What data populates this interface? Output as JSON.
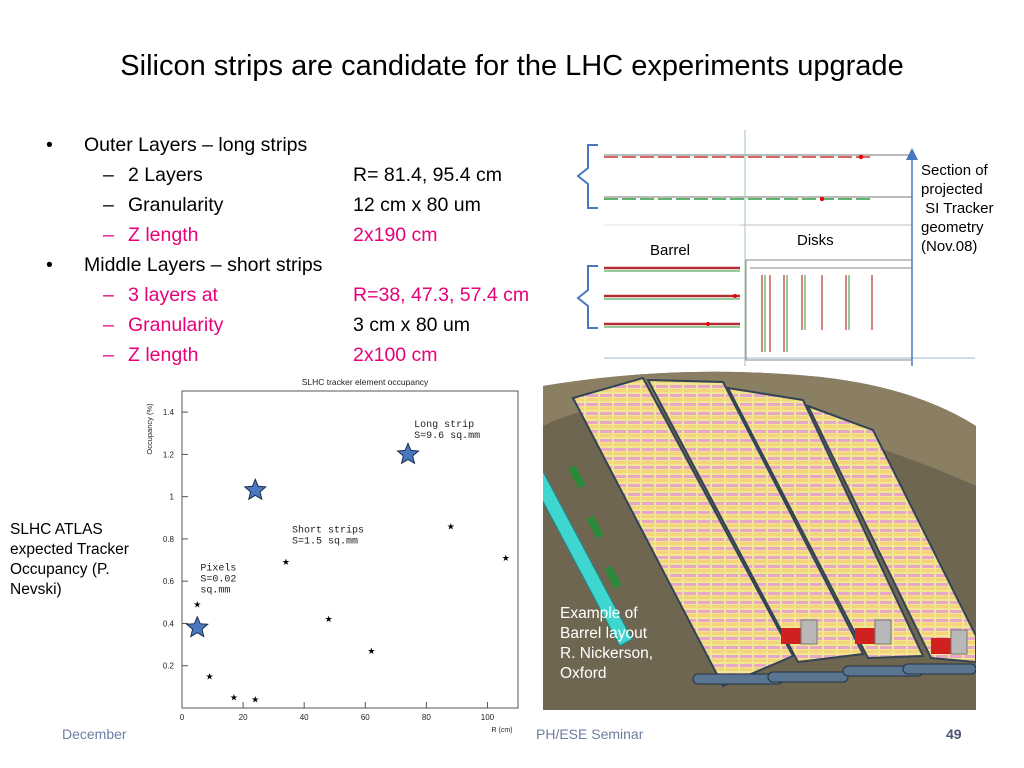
{
  "slide": {
    "title": "Silicon strips are candidate for the LHC experiments upgrade",
    "bullets": [
      {
        "text": "Outer Layers – long strips",
        "subs": [
          {
            "label": "2 Layers",
            "value": "R= 81.4,  95.4 cm",
            "highlight": false
          },
          {
            "label": "Granularity",
            "value": "12 cm x 80 um",
            "highlight": false
          },
          {
            "label": "Z length",
            "value": "2x190 cm",
            "highlight": true
          }
        ]
      },
      {
        "text": "Middle Layers – short strips",
        "subs": [
          {
            "label": "3 layers at",
            "value": "R=38,  47.3,  57.4  cm",
            "highlight": true
          },
          {
            "label": "Granularity",
            "value": "3 cm x 80 um",
            "highlight": false
          },
          {
            "label": "Z length",
            "value": "2x100 cm",
            "highlight": true
          }
        ]
      }
    ],
    "bullet_marker": "•",
    "sub_marker": "–",
    "highlight_color": "#e8007a"
  },
  "geometry_figure": {
    "barrel_label": "Barrel",
    "disks_label": "Disks",
    "caption": [
      "Section of",
      "projected",
      " SI Tracker",
      "geometry",
      "(Nov.08)"
    ]
  },
  "occupancy_plot": {
    "caption": [
      "SLHC ATLAS",
      "expected Tracker",
      "Occupancy (P.",
      "Nevski)"
    ]
  },
  "barrel_image": {
    "caption": [
      "Example of",
      "Barrel layout",
      "R. Nickerson,",
      "Oxford"
    ]
  },
  "footer": {
    "left": "December",
    "center": "PH/ESE Seminar",
    "page": "49"
  },
  "chart_data": {
    "type": "scatter",
    "title": "SLHC tracker element occupancy",
    "xlabel": "R (cm)",
    "ylabel": "Occupancy (%)",
    "xlim": [
      0,
      110
    ],
    "ylim": [
      0,
      1.5
    ],
    "xticks": [
      0,
      20,
      40,
      60,
      80,
      100
    ],
    "yticks": [
      0.2,
      0.4,
      0.6,
      0.8,
      1.0,
      1.2,
      1.4
    ],
    "xtick_labels": [
      "0",
      "20",
      "40",
      "60",
      "80",
      "100"
    ],
    "ytick_labels": [
      "0.2",
      "0.4",
      "0.6",
      "0.8",
      "1",
      "1.2",
      "1.4"
    ],
    "points": [
      {
        "x": 5,
        "y": 0.49
      },
      {
        "x": 9,
        "y": 0.15
      },
      {
        "x": 17,
        "y": 0.05
      },
      {
        "x": 24,
        "y": 0.04
      },
      {
        "x": 34,
        "y": 0.69
      },
      {
        "x": 48,
        "y": 0.42
      },
      {
        "x": 62,
        "y": 0.27
      },
      {
        "x": 88,
        "y": 0.86
      },
      {
        "x": 106,
        "y": 0.71
      }
    ],
    "highlight_points": [
      {
        "x": 5,
        "y": 0.38
      },
      {
        "x": 24,
        "y": 1.03
      },
      {
        "x": 74,
        "y": 1.2
      }
    ],
    "annotations": [
      {
        "lines": [
          "Long strip",
          "S=9.6 sq.mm"
        ],
        "x": 76,
        "y": 1.33
      },
      {
        "lines": [
          "Short strips",
          "S=1.5 sq.mm"
        ],
        "x": 36,
        "y": 0.83
      },
      {
        "lines": [
          "Pixels",
          "S=0.02",
          "sq.mm"
        ],
        "x": 6,
        "y": 0.65
      }
    ],
    "star_color": "#4a78c0",
    "grid": false
  }
}
